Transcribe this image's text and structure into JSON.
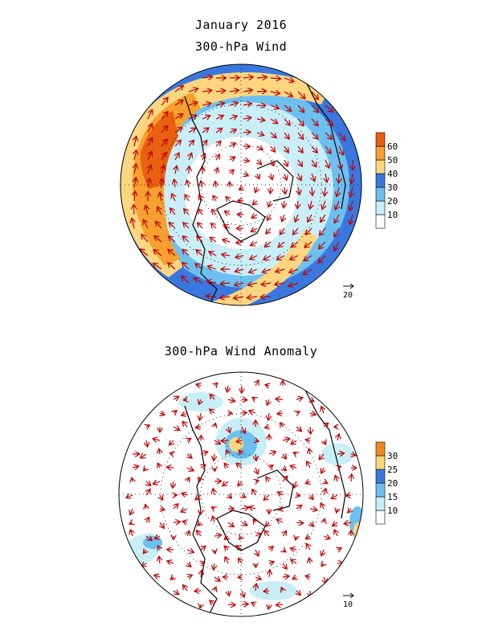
{
  "titles": {
    "month": "January 2016",
    "top": "300-hPa Wind",
    "bottom": "300-hPa Wind Anomaly"
  },
  "panels": [
    {
      "colorbar": {
        "ticks": [
          "10",
          "20",
          "30",
          "40",
          "50",
          "60"
        ],
        "colors": [
          "#ffffff",
          "#c8eef8",
          "#6cc0f0",
          "#3a78e0",
          "#ffd680",
          "#f5a030",
          "#e96010"
        ]
      },
      "ref_vector": "20"
    },
    {
      "colorbar": {
        "ticks": [
          "10",
          "15",
          "20",
          "25",
          "30"
        ],
        "colors": [
          "#ffffff",
          "#c8eef8",
          "#6cc0f0",
          "#3a78e0",
          "#ffd680",
          "#f08a20"
        ]
      },
      "ref_vector": "10"
    }
  ]
}
